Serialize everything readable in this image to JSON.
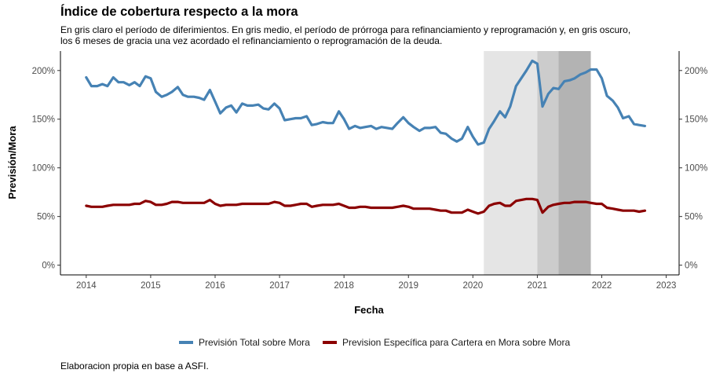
{
  "title": "Índice de cobertura respecto a la mora",
  "subtitle_lines": [
    "En gris claro el período de diferimientos. En gris medio, el período de prórroga para refinanciamiento y reprogramación y, en gris oscuro,",
    "los 6 meses de gracia una vez acordado el refinanciamiento o reprogramación de la deuda."
  ],
  "caption": "Elaboracion propia en base a ASFI.",
  "chart_data": {
    "type": "line",
    "title": "Índice de cobertura respecto a la mora",
    "xlabel": "Fecha",
    "ylabel": "Previsión/Mora",
    "xlim": [
      2013.6,
      2023.2
    ],
    "ylim": [
      -0.1,
      2.2
    ],
    "x_ticks": [
      2014,
      2015,
      2016,
      2017,
      2018,
      2019,
      2020,
      2021,
      2022,
      2023
    ],
    "y_ticks": [
      0,
      0.5,
      1.0,
      1.5,
      2.0
    ],
    "y_tick_labels": [
      "0%",
      "50%",
      "100%",
      "150%",
      "200%"
    ],
    "secondary_y_axis": true,
    "grid": false,
    "legend_position": "bottom",
    "shaded_periods": [
      {
        "from": 2020.17,
        "to": 2021.0,
        "color": "#e5e5e5"
      },
      {
        "from": 2021.0,
        "to": 2021.33,
        "color": "#cccccc"
      },
      {
        "from": 2021.33,
        "to": 2021.83,
        "color": "#b3b3b3"
      }
    ],
    "series": [
      {
        "name": "Previsión Total sobre Mora",
        "color": "#4682b4",
        "x": [
          2014.0,
          2014.08,
          2014.17,
          2014.25,
          2014.33,
          2014.42,
          2014.5,
          2014.58,
          2014.67,
          2014.75,
          2014.83,
          2014.92,
          2015.0,
          2015.08,
          2015.17,
          2015.25,
          2015.33,
          2015.42,
          2015.5,
          2015.58,
          2015.67,
          2015.75,
          2015.83,
          2015.92,
          2016.0,
          2016.08,
          2016.17,
          2016.25,
          2016.33,
          2016.42,
          2016.5,
          2016.58,
          2016.67,
          2016.75,
          2016.83,
          2016.92,
          2017.0,
          2017.08,
          2017.17,
          2017.25,
          2017.33,
          2017.42,
          2017.5,
          2017.58,
          2017.67,
          2017.75,
          2017.83,
          2017.92,
          2018.0,
          2018.08,
          2018.17,
          2018.25,
          2018.33,
          2018.42,
          2018.5,
          2018.58,
          2018.67,
          2018.75,
          2018.83,
          2018.92,
          2019.0,
          2019.08,
          2019.17,
          2019.25,
          2019.33,
          2019.42,
          2019.5,
          2019.58,
          2019.67,
          2019.75,
          2019.83,
          2019.92,
          2020.0,
          2020.08,
          2020.17,
          2020.25,
          2020.33,
          2020.42,
          2020.5,
          2020.58,
          2020.67,
          2020.75,
          2020.83,
          2020.92,
          2021.0,
          2021.08,
          2021.17,
          2021.25,
          2021.33,
          2021.42,
          2021.5,
          2021.58,
          2021.67,
          2021.75,
          2021.83,
          2021.92,
          2022.0,
          2022.08,
          2022.17,
          2022.25,
          2022.33,
          2022.42,
          2022.5,
          2022.58,
          2022.67
        ],
        "values": [
          1.93,
          1.84,
          1.84,
          1.86,
          1.84,
          1.93,
          1.88,
          1.88,
          1.85,
          1.88,
          1.84,
          1.94,
          1.92,
          1.78,
          1.73,
          1.75,
          1.78,
          1.83,
          1.75,
          1.73,
          1.73,
          1.72,
          1.7,
          1.8,
          1.68,
          1.56,
          1.62,
          1.64,
          1.57,
          1.66,
          1.64,
          1.64,
          1.65,
          1.61,
          1.6,
          1.66,
          1.61,
          1.49,
          1.5,
          1.51,
          1.51,
          1.53,
          1.44,
          1.45,
          1.47,
          1.46,
          1.46,
          1.58,
          1.5,
          1.4,
          1.43,
          1.41,
          1.42,
          1.43,
          1.4,
          1.42,
          1.41,
          1.4,
          1.46,
          1.52,
          1.46,
          1.42,
          1.38,
          1.41,
          1.41,
          1.42,
          1.36,
          1.35,
          1.3,
          1.27,
          1.3,
          1.42,
          1.32,
          1.24,
          1.26,
          1.4,
          1.48,
          1.58,
          1.52,
          1.63,
          1.84,
          1.92,
          2.0,
          2.1,
          2.07,
          1.63,
          1.76,
          1.82,
          1.81,
          1.89,
          1.9,
          1.92,
          1.96,
          1.98,
          2.01,
          2.01,
          1.92,
          1.74,
          1.69,
          1.62,
          1.51,
          1.53,
          1.45,
          1.44,
          1.43
        ]
      },
      {
        "name": "Prevision Específica para Cartera en Mora sobre Mora",
        "color": "#8b0000",
        "x": [
          2014.0,
          2014.08,
          2014.17,
          2014.25,
          2014.33,
          2014.42,
          2014.5,
          2014.58,
          2014.67,
          2014.75,
          2014.83,
          2014.92,
          2015.0,
          2015.08,
          2015.17,
          2015.25,
          2015.33,
          2015.42,
          2015.5,
          2015.58,
          2015.67,
          2015.75,
          2015.83,
          2015.92,
          2016.0,
          2016.08,
          2016.17,
          2016.25,
          2016.33,
          2016.42,
          2016.5,
          2016.58,
          2016.67,
          2016.75,
          2016.83,
          2016.92,
          2017.0,
          2017.08,
          2017.17,
          2017.25,
          2017.33,
          2017.42,
          2017.5,
          2017.58,
          2017.67,
          2017.75,
          2017.83,
          2017.92,
          2018.0,
          2018.08,
          2018.17,
          2018.25,
          2018.33,
          2018.42,
          2018.5,
          2018.58,
          2018.67,
          2018.75,
          2018.83,
          2018.92,
          2019.0,
          2019.08,
          2019.17,
          2019.25,
          2019.33,
          2019.42,
          2019.5,
          2019.58,
          2019.67,
          2019.75,
          2019.83,
          2019.92,
          2020.0,
          2020.08,
          2020.17,
          2020.25,
          2020.33,
          2020.42,
          2020.5,
          2020.58,
          2020.67,
          2020.75,
          2020.83,
          2020.92,
          2021.0,
          2021.08,
          2021.17,
          2021.25,
          2021.33,
          2021.42,
          2021.5,
          2021.58,
          2021.67,
          2021.75,
          2021.83,
          2021.92,
          2022.0,
          2022.08,
          2022.17,
          2022.25,
          2022.33,
          2022.42,
          2022.5,
          2022.58,
          2022.67
        ],
        "values": [
          0.61,
          0.6,
          0.6,
          0.6,
          0.61,
          0.62,
          0.62,
          0.62,
          0.62,
          0.63,
          0.63,
          0.66,
          0.65,
          0.62,
          0.62,
          0.63,
          0.65,
          0.65,
          0.64,
          0.64,
          0.64,
          0.64,
          0.64,
          0.67,
          0.63,
          0.61,
          0.62,
          0.62,
          0.62,
          0.63,
          0.63,
          0.63,
          0.63,
          0.63,
          0.63,
          0.65,
          0.64,
          0.61,
          0.61,
          0.62,
          0.63,
          0.63,
          0.6,
          0.61,
          0.62,
          0.62,
          0.62,
          0.63,
          0.61,
          0.59,
          0.59,
          0.6,
          0.6,
          0.59,
          0.59,
          0.59,
          0.59,
          0.59,
          0.6,
          0.61,
          0.6,
          0.58,
          0.58,
          0.58,
          0.58,
          0.57,
          0.56,
          0.56,
          0.54,
          0.54,
          0.54,
          0.57,
          0.55,
          0.53,
          0.55,
          0.61,
          0.63,
          0.64,
          0.61,
          0.61,
          0.66,
          0.67,
          0.68,
          0.68,
          0.67,
          0.54,
          0.6,
          0.62,
          0.63,
          0.64,
          0.64,
          0.65,
          0.65,
          0.65,
          0.64,
          0.63,
          0.63,
          0.59,
          0.58,
          0.57,
          0.56,
          0.56,
          0.56,
          0.55,
          0.56
        ]
      }
    ]
  }
}
